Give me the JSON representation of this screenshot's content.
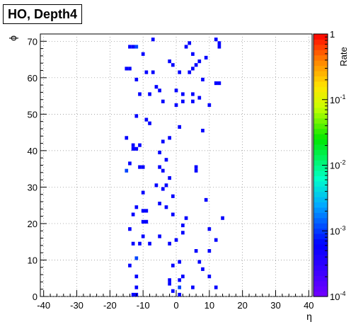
{
  "chart_data": {
    "type": "heatmap",
    "title": "HO, Depth4",
    "xlabel": "η",
    "ylabel": "ϕ",
    "zlabel": "Rate",
    "xlim": [
      -41,
      41
    ],
    "ylim": [
      0,
      72
    ],
    "zlim": [
      0.0001,
      1
    ],
    "zscale": "log",
    "grid": true,
    "x_ticks": [
      -40,
      -30,
      -20,
      -10,
      0,
      10,
      20,
      30,
      40
    ],
    "y_ticks": [
      0,
      10,
      20,
      30,
      40,
      50,
      60,
      70
    ],
    "z_ticks": [
      {
        "value": 1,
        "label": "1"
      },
      {
        "value": 0.1,
        "label": "10^{-1}"
      },
      {
        "value": 0.01,
        "label": "10^{-2}"
      },
      {
        "value": 0.001,
        "label": "10^{-3}"
      },
      {
        "value": 0.0001,
        "label": "10^{-4}"
      }
    ],
    "cells": [
      {
        "x": -7,
        "y": 70,
        "z": 0.0006
      },
      {
        "x": 12,
        "y": 70,
        "z": 0.0006
      },
      {
        "x": 4,
        "y": 69,
        "z": 0.0006
      },
      {
        "x": 13,
        "y": 69,
        "z": 0.0006
      },
      {
        "x": -14,
        "y": 68,
        "z": 0.0006
      },
      {
        "x": -13,
        "y": 68,
        "z": 0.0006
      },
      {
        "x": -12,
        "y": 68,
        "z": 0.0011
      },
      {
        "x": 3,
        "y": 68,
        "z": 0.0006
      },
      {
        "x": 13,
        "y": 68,
        "z": 0.0006
      },
      {
        "x": -10,
        "y": 66,
        "z": 0.0006
      },
      {
        "x": 5,
        "y": 66,
        "z": 0.0006
      },
      {
        "x": 9,
        "y": 65,
        "z": 0.0006
      },
      {
        "x": -2,
        "y": 64,
        "z": 0.0006
      },
      {
        "x": 7,
        "y": 64,
        "z": 0.0006
      },
      {
        "x": -1,
        "y": 63,
        "z": 0.0006
      },
      {
        "x": 6,
        "y": 63,
        "z": 0.0006
      },
      {
        "x": -15,
        "y": 62,
        "z": 0.0006
      },
      {
        "x": -14,
        "y": 62,
        "z": 0.0006
      },
      {
        "x": 5,
        "y": 62,
        "z": 0.0006
      },
      {
        "x": -9,
        "y": 61,
        "z": 0.0006
      },
      {
        "x": -7,
        "y": 61,
        "z": 0.0006
      },
      {
        "x": 1,
        "y": 61,
        "z": 0.0006
      },
      {
        "x": 4,
        "y": 61,
        "z": 0.0006
      },
      {
        "x": -12,
        "y": 59,
        "z": 0.0006
      },
      {
        "x": 8,
        "y": 59,
        "z": 0.0006
      },
      {
        "x": 12,
        "y": 58,
        "z": 0.0006
      },
      {
        "x": 13,
        "y": 58,
        "z": 0.0006
      },
      {
        "x": -6,
        "y": 57,
        "z": 0.0006
      },
      {
        "x": -5,
        "y": 56,
        "z": 0.0006
      },
      {
        "x": 0,
        "y": 56,
        "z": 0.0006
      },
      {
        "x": 2,
        "y": 55,
        "z": 0.0006
      },
      {
        "x": 5,
        "y": 55,
        "z": 0.0006
      },
      {
        "x": -11,
        "y": 55,
        "z": 0.0006
      },
      {
        "x": -8,
        "y": 55,
        "z": 0.0006
      },
      {
        "x": 7,
        "y": 54,
        "z": 0.0006
      },
      {
        "x": -4,
        "y": 53,
        "z": 0.0006
      },
      {
        "x": 2,
        "y": 53,
        "z": 0.0006
      },
      {
        "x": 5,
        "y": 53,
        "z": 0.0006
      },
      {
        "x": 0,
        "y": 52,
        "z": 0.0006
      },
      {
        "x": 10,
        "y": 52,
        "z": 0.0006
      },
      {
        "x": -12,
        "y": 49,
        "z": 0.0006
      },
      {
        "x": -9,
        "y": 48,
        "z": 0.0006
      },
      {
        "x": -8,
        "y": 47,
        "z": 0.0006
      },
      {
        "x": 1,
        "y": 46,
        "z": 0.0006
      },
      {
        "x": 8,
        "y": 45,
        "z": 0.0006
      },
      {
        "x": -15,
        "y": 43,
        "z": 0.0006
      },
      {
        "x": -2,
        "y": 43,
        "z": 0.0006
      },
      {
        "x": -4,
        "y": 42,
        "z": 0.0006
      },
      {
        "x": -13,
        "y": 41,
        "z": 0.0006
      },
      {
        "x": -11,
        "y": 41,
        "z": 0.0006
      },
      {
        "x": -13,
        "y": 40,
        "z": 0.0006
      },
      {
        "x": -12,
        "y": 40,
        "z": 0.0006
      },
      {
        "x": -5,
        "y": 39,
        "z": 0.0006
      },
      {
        "x": -3,
        "y": 37,
        "z": 0.0006
      },
      {
        "x": -14,
        "y": 36,
        "z": 0.0006
      },
      {
        "x": -11,
        "y": 35,
        "z": 0.0006
      },
      {
        "x": -10,
        "y": 35,
        "z": 0.0006
      },
      {
        "x": -5,
        "y": 35,
        "z": 0.0006
      },
      {
        "x": 6,
        "y": 35,
        "z": 0.0006
      },
      {
        "x": -15,
        "y": 34,
        "z": 0.0011
      },
      {
        "x": -4,
        "y": 34,
        "z": 0.0006
      },
      {
        "x": 6,
        "y": 34,
        "z": 0.0006
      },
      {
        "x": -2,
        "y": 32,
        "z": 0.0006
      },
      {
        "x": -6,
        "y": 30,
        "z": 0.0006
      },
      {
        "x": -3,
        "y": 30,
        "z": 0.0006
      },
      {
        "x": -4,
        "y": 29,
        "z": 0.0006
      },
      {
        "x": -10,
        "y": 28,
        "z": 0.0006
      },
      {
        "x": -1,
        "y": 27,
        "z": 0.0006
      },
      {
        "x": 9,
        "y": 26,
        "z": 0.0006
      },
      {
        "x": -5,
        "y": 25,
        "z": 0.0006
      },
      {
        "x": -12,
        "y": 24,
        "z": 0.0006
      },
      {
        "x": -3,
        "y": 24,
        "z": 0.0006
      },
      {
        "x": -10,
        "y": 23,
        "z": 0.0006
      },
      {
        "x": -9,
        "y": 23,
        "z": 0.0006
      },
      {
        "x": -13,
        "y": 22,
        "z": 0.0006
      },
      {
        "x": -1,
        "y": 22,
        "z": 0.0006
      },
      {
        "x": 3,
        "y": 21,
        "z": 0.0006
      },
      {
        "x": 14,
        "y": 21,
        "z": 0.0006
      },
      {
        "x": -10,
        "y": 20,
        "z": 0.0006
      },
      {
        "x": -9,
        "y": 20,
        "z": 0.0006
      },
      {
        "x": 2,
        "y": 19,
        "z": 0.0006
      },
      {
        "x": -14,
        "y": 18,
        "z": 0.0006
      },
      {
        "x": 10,
        "y": 18,
        "z": 0.0006
      },
      {
        "x": 2,
        "y": 17,
        "z": 0.0006
      },
      {
        "x": -10,
        "y": 16,
        "z": 0.0006
      },
      {
        "x": -5,
        "y": 16,
        "z": 0.0006
      },
      {
        "x": 0,
        "y": 15,
        "z": 0.0006
      },
      {
        "x": 12,
        "y": 15,
        "z": 0.0006
      },
      {
        "x": -13,
        "y": 14,
        "z": 0.0006
      },
      {
        "x": -11,
        "y": 14,
        "z": 0.0006
      },
      {
        "x": -8,
        "y": 14,
        "z": 0.0006
      },
      {
        "x": -2,
        "y": 14,
        "z": 0.0006
      },
      {
        "x": 10,
        "y": 12,
        "z": 0.0006
      },
      {
        "x": 6,
        "y": 12,
        "z": 0.0006
      },
      {
        "x": -12,
        "y": 10,
        "z": 0.0011
      },
      {
        "x": 1,
        "y": 9,
        "z": 0.0006
      },
      {
        "x": 7,
        "y": 9,
        "z": 0.0006
      },
      {
        "x": -14,
        "y": 8,
        "z": 0.0006
      },
      {
        "x": -1,
        "y": 8,
        "z": 0.0006
      },
      {
        "x": 8,
        "y": 7,
        "z": 0.0006
      },
      {
        "x": -12,
        "y": 5,
        "z": 0.0006
      },
      {
        "x": 2,
        "y": 5,
        "z": 0.0006
      },
      {
        "x": 10,
        "y": 5,
        "z": 0.0006
      },
      {
        "x": -2,
        "y": 4,
        "z": 0.0006
      },
      {
        "x": 1,
        "y": 4,
        "z": 0.0006
      },
      {
        "x": -2,
        "y": 3,
        "z": 0.0006
      },
      {
        "x": -12,
        "y": 2,
        "z": 0.0006
      },
      {
        "x": 1,
        "y": 2,
        "z": 0.0011
      },
      {
        "x": 5,
        "y": 2,
        "z": 0.0006
      },
      {
        "x": 12,
        "y": 2,
        "z": 0.0006
      },
      {
        "x": -1,
        "y": 1,
        "z": 0.0006
      },
      {
        "x": -13,
        "y": 0,
        "z": 0.0006
      },
      {
        "x": -12,
        "y": 0,
        "z": 0.0006
      },
      {
        "x": 1,
        "y": 0,
        "z": 0.0006
      }
    ]
  }
}
